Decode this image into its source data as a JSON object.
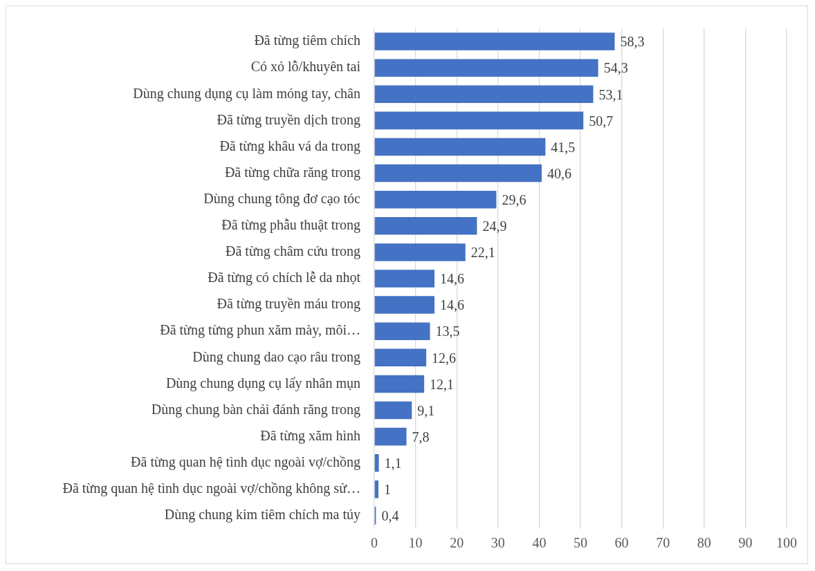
{
  "chart_data": {
    "type": "bar",
    "orientation": "horizontal",
    "categories": [
      "Đã từng tiêm chích",
      "Có xỏ lỗ/khuyên tai",
      "Dùng chung dụng cụ làm móng tay, chân",
      "Đã từng truyền dịch trong",
      "Đã từng khâu vá da trong",
      "Đã từng chữa răng trong",
      "Dùng chung tông đơ cạo tóc",
      "Đã từng phẫu thuật trong",
      "Đã từng châm cứu trong",
      "Đã từng có chích lễ da nhọt",
      "Đã từng truyền máu trong",
      "Đã từng từng phun xăm mày, môi…",
      "Dùng chung dao cạo râu trong",
      "Dùng chung dụng cụ lấy nhân mụn",
      "Dùng chung bàn chải đánh răng trong",
      "Đã từng xăm hình",
      "Đã từng quan hệ tình dục ngoài vợ/chồng",
      "Đã từng quan hệ tình dục ngoài vợ/chồng không sử…",
      "Dùng chung kim tiêm chích ma túy"
    ],
    "values": [
      58.3,
      54.3,
      53.1,
      50.7,
      41.5,
      40.6,
      29.6,
      24.9,
      22.1,
      14.6,
      14.6,
      13.5,
      12.6,
      12.1,
      9.1,
      7.8,
      1.1,
      1,
      0.4
    ],
    "value_labels": [
      "58,3",
      "54,3",
      "53,1",
      "50,7",
      "41,5",
      "40,6",
      "29,6",
      "24,9",
      "22,1",
      "14,6",
      "14,6",
      "13,5",
      "12,6",
      "12,1",
      "9,1",
      "7,8",
      "1,1",
      "1",
      "0,4"
    ],
    "color": "#4472c4",
    "xlim": [
      0,
      100
    ],
    "xticks": [
      0,
      10,
      20,
      30,
      40,
      50,
      60,
      70,
      80,
      90,
      100
    ],
    "grid": "x",
    "legend": false
  }
}
